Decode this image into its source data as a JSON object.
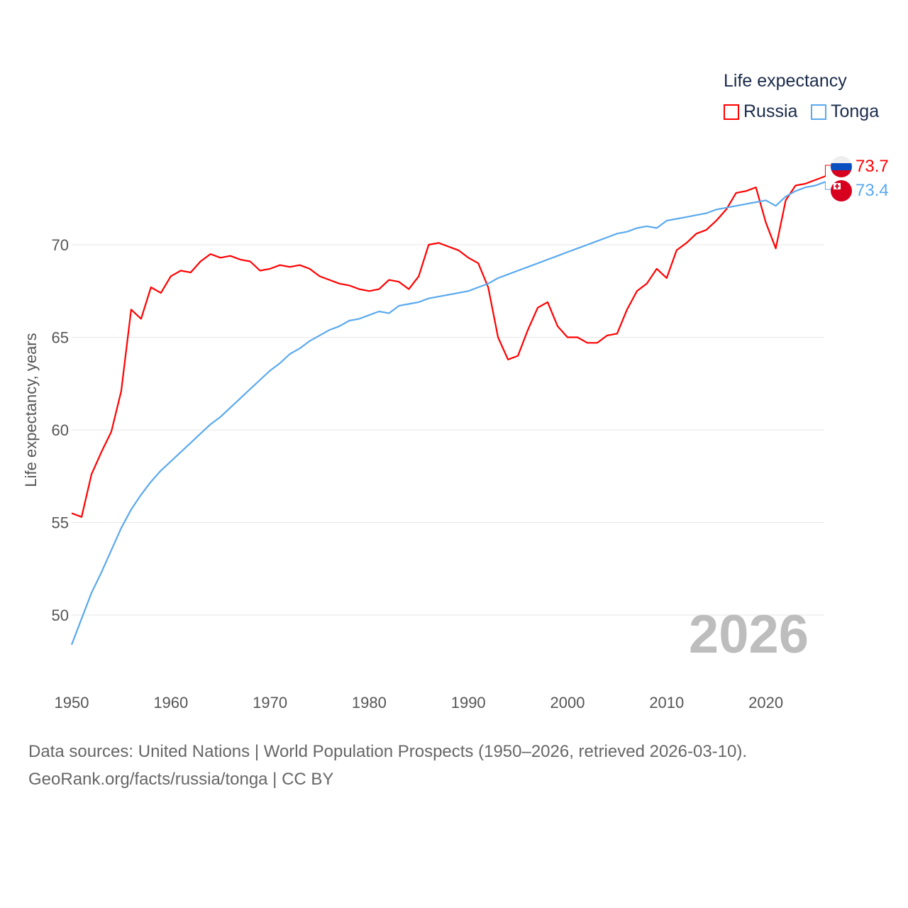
{
  "chart_data": {
    "type": "line",
    "title": "Life expectancy",
    "xlabel": "",
    "ylabel": "Life expectancy, years",
    "xlim": [
      1950,
      2026
    ],
    "ylim": [
      47.5,
      75
    ],
    "xticks": [
      "1950",
      "1960",
      "1970",
      "1980",
      "1990",
      "2000",
      "2010",
      "2020"
    ],
    "yticks": [
      "50",
      "55",
      "60",
      "65",
      "70"
    ],
    "grid": true,
    "legend_placement": "top-right",
    "year_watermark": "2026",
    "x": [
      1950,
      1951,
      1952,
      1953,
      1954,
      1955,
      1956,
      1957,
      1958,
      1959,
      1960,
      1961,
      1962,
      1963,
      1964,
      1965,
      1966,
      1967,
      1968,
      1969,
      1970,
      1971,
      1972,
      1973,
      1974,
      1975,
      1976,
      1977,
      1978,
      1979,
      1980,
      1981,
      1982,
      1983,
      1984,
      1985,
      1986,
      1987,
      1988,
      1989,
      1990,
      1991,
      1992,
      1993,
      1994,
      1995,
      1996,
      1997,
      1998,
      1999,
      2000,
      2001,
      2002,
      2003,
      2004,
      2005,
      2006,
      2007,
      2008,
      2009,
      2010,
      2011,
      2012,
      2013,
      2014,
      2015,
      2016,
      2017,
      2018,
      2019,
      2020,
      2021,
      2022,
      2023,
      2024,
      2025,
      2026
    ],
    "series": [
      {
        "name": "Russia",
        "color": "#ff0000",
        "end_label": "73.7",
        "values": [
          55.5,
          55.3,
          57.6,
          58.8,
          59.9,
          62.1,
          66.5,
          66.0,
          67.7,
          67.4,
          68.3,
          68.6,
          68.5,
          69.1,
          69.5,
          69.3,
          69.4,
          69.2,
          69.1,
          68.6,
          68.7,
          68.9,
          68.8,
          68.9,
          68.7,
          68.3,
          68.1,
          67.9,
          67.8,
          67.6,
          67.5,
          67.6,
          68.1,
          68.0,
          67.6,
          68.3,
          70.0,
          70.1,
          69.9,
          69.7,
          69.3,
          69.0,
          67.7,
          65.0,
          63.8,
          64.0,
          65.4,
          66.6,
          66.9,
          65.6,
          65.0,
          65.0,
          64.7,
          64.7,
          65.1,
          65.2,
          66.5,
          67.5,
          67.9,
          68.7,
          68.2,
          69.7,
          70.1,
          70.6,
          70.8,
          71.3,
          71.9,
          72.8,
          72.9,
          73.1,
          71.2,
          69.8,
          72.4,
          73.2,
          73.3,
          73.5,
          73.7
        ]
      },
      {
        "name": "Tonga",
        "color": "#5aa9ee",
        "end_label": "73.4",
        "values": [
          48.4,
          49.8,
          51.2,
          52.3,
          53.5,
          54.7,
          55.7,
          56.5,
          57.2,
          57.8,
          58.3,
          58.8,
          59.3,
          59.8,
          60.3,
          60.7,
          61.2,
          61.7,
          62.2,
          62.7,
          63.2,
          63.6,
          64.1,
          64.4,
          64.8,
          65.1,
          65.4,
          65.6,
          65.9,
          66.0,
          66.2,
          66.4,
          66.3,
          66.7,
          66.8,
          66.9,
          67.1,
          67.2,
          67.3,
          67.4,
          67.5,
          67.7,
          67.9,
          68.2,
          68.4,
          68.6,
          68.8,
          69.0,
          69.2,
          69.4,
          69.6,
          69.8,
          70.0,
          70.2,
          70.4,
          70.6,
          70.7,
          70.9,
          71.0,
          70.9,
          71.3,
          71.4,
          71.5,
          71.6,
          71.7,
          71.9,
          72.0,
          72.1,
          72.2,
          72.3,
          72.4,
          72.1,
          72.6,
          72.9,
          73.1,
          73.2,
          73.4
        ]
      }
    ]
  },
  "footer": {
    "source": "Data sources: United Nations | World Population Prospects (1950–2026, retrieved 2026-03-10).",
    "credit": "GeoRank.org/facts/russia/tonga | CC BY"
  }
}
